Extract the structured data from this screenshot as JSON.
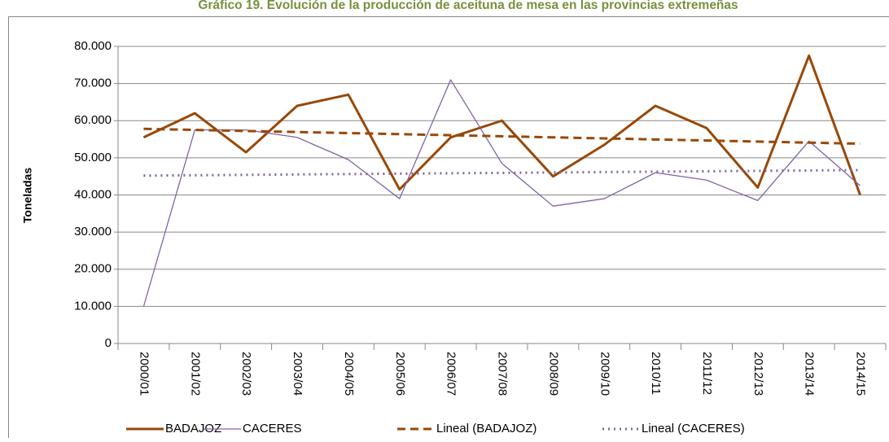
{
  "chart_data": {
    "type": "line",
    "title": "Gráfico 19. Evolución de la producción de aceituna de mesa en las provincias extremeñas",
    "y_label": "Toneladas",
    "categories": [
      "2000/01",
      "2001/02",
      "2002/03",
      "2003/04",
      "2004/05",
      "2005/06",
      "2006/07",
      "2007/08",
      "2008/09",
      "2009/10",
      "2010/11",
      "2011/12",
      "2012/13",
      "2013/14",
      "2014/15"
    ],
    "series": [
      {
        "name": "BADAJOZ",
        "color": "#984807",
        "style": "solid",
        "width": 3,
        "values": [
          55500,
          62000,
          51500,
          64000,
          67000,
          41500,
          55500,
          60000,
          45000,
          53500,
          64000,
          58000,
          42000,
          77500,
          40000
        ]
      },
      {
        "name": "CACERES",
        "color": "#8064a2",
        "style": "solid",
        "width": 1.3,
        "values": [
          10000,
          57500,
          57500,
          55500,
          49500,
          39000,
          71000,
          48500,
          37000,
          39000,
          46000,
          44000,
          38500,
          54500,
          42500
        ]
      },
      {
        "name": "Lineal (BADAJOZ)",
        "color": "#984807",
        "style": "dashed",
        "width": 3,
        "values": [
          57800,
          57514,
          57229,
          56943,
          56657,
          56371,
          56086,
          55800,
          55514,
          55229,
          54943,
          54657,
          54371,
          54086,
          53800
        ]
      },
      {
        "name": "Lineal (CACERES)",
        "color": "#8064a2",
        "style": "dotted",
        "width": 3,
        "values": [
          45200,
          45307,
          45414,
          45521,
          45629,
          45736,
          45843,
          45950,
          46057,
          46164,
          46271,
          46379,
          46486,
          46593,
          46700
        ]
      }
    ],
    "ylim": [
      0,
      80000
    ],
    "yticks": [
      0,
      {
        "value": 10000,
        "label": "10.000"
      },
      {
        "value": 20000,
        "label": "20.000"
      },
      {
        "value": 30000,
        "label": "30.000"
      },
      {
        "value": 40000,
        "label": "40.000"
      },
      {
        "value": 50000,
        "label": "50.000"
      },
      {
        "value": 60000,
        "label": "60.000"
      },
      {
        "value": 70000,
        "label": "70.000"
      },
      {
        "value": 80000,
        "label": "80.000"
      }
    ],
    "grid": true,
    "legend": "bottom"
  }
}
